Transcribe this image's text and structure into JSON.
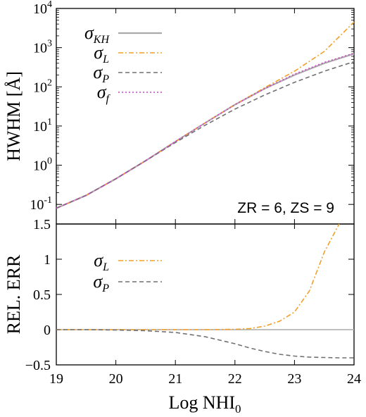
{
  "chart_data": [
    {
      "type": "line",
      "xlabel": "",
      "ylabel": "HWHM [Å]",
      "xlim": [
        19,
        24
      ],
      "ylim_log10": [
        -1.5,
        4
      ],
      "yscale": "log",
      "annotation": "ZR = 6,  ZS = 9",
      "x_ticks": [
        "19",
        "20",
        "21",
        "22",
        "23",
        "24"
      ],
      "y_ticks": [
        {
          "base": "10",
          "exp": "-1",
          "value": 0.1
        },
        {
          "base": "10",
          "exp": "0",
          "value": 1
        },
        {
          "base": "10",
          "exp": "1",
          "value": 10
        },
        {
          "base": "10",
          "exp": "2",
          "value": 100
        },
        {
          "base": "10",
          "exp": "3",
          "value": 1000
        },
        {
          "base": "10",
          "exp": "4",
          "value": 10000
        }
      ],
      "x": [
        19.0,
        19.5,
        20.0,
        20.5,
        21.0,
        21.5,
        22.0,
        22.5,
        23.0,
        23.5,
        24.0
      ],
      "series": [
        {
          "name": "σ",
          "sub": "KH",
          "color": "#aaaaaa",
          "dash": "solid",
          "values": [
            0.08,
            0.17,
            0.45,
            1.3,
            4.0,
            12,
            35,
            90,
            200,
            400,
            700
          ]
        },
        {
          "name": "σ",
          "sub": "L",
          "color": "#f2a02a",
          "dash": "dashdot",
          "values": [
            0.08,
            0.17,
            0.45,
            1.3,
            4.0,
            12,
            35,
            95,
            250,
            800,
            4500
          ]
        },
        {
          "name": "σ",
          "sub": "P",
          "color": "#707070",
          "dash": "dashed",
          "values": [
            0.08,
            0.17,
            0.45,
            1.3,
            3.8,
            10.5,
            27,
            62,
            130,
            250,
            440
          ]
        },
        {
          "name": "σ",
          "sub": "f",
          "color": "#cc44cc",
          "dash": "dotted",
          "values": [
            0.08,
            0.17,
            0.45,
            1.3,
            4.0,
            12,
            35,
            90,
            210,
            420,
            720
          ]
        }
      ]
    },
    {
      "type": "line",
      "xlabel": "Log NHI",
      "xlabel_sub": "0",
      "ylabel": "REL. ERR",
      "xlim": [
        19,
        24
      ],
      "ylim": [
        -0.5,
        1.5
      ],
      "x_ticks": [
        "19",
        "20",
        "21",
        "22",
        "23",
        "24"
      ],
      "y_ticks": [
        {
          "label": "1.5",
          "value": 1.5
        },
        {
          "label": "1",
          "value": 1.0
        },
        {
          "label": "0.5",
          "value": 0.5
        },
        {
          "label": "0",
          "value": 0.0
        },
        {
          "label": "−0.5",
          "value": -0.5
        }
      ],
      "x": [
        19.0,
        19.5,
        20.0,
        20.5,
        21.0,
        21.5,
        22.0,
        22.25,
        22.5,
        22.75,
        23.0,
        23.25,
        23.5,
        23.75,
        24.0
      ],
      "zero_line_color": "#aaaaaa",
      "series": [
        {
          "name": "σ",
          "sub": "L",
          "color": "#f2a02a",
          "dash": "dashdot",
          "values": [
            0.0,
            0.0,
            0.0,
            0.0,
            0.0,
            0.0,
            0.005,
            0.015,
            0.05,
            0.12,
            0.25,
            0.55,
            1.1,
            1.5,
            null
          ]
        },
        {
          "name": "σ",
          "sub": "P",
          "color": "#707070",
          "dash": "dashed",
          "values": [
            0.0,
            0.0,
            -0.005,
            -0.015,
            -0.04,
            -0.1,
            -0.2,
            -0.26,
            -0.31,
            -0.35,
            -0.375,
            -0.39,
            -0.395,
            -0.4,
            -0.4
          ]
        }
      ]
    }
  ]
}
